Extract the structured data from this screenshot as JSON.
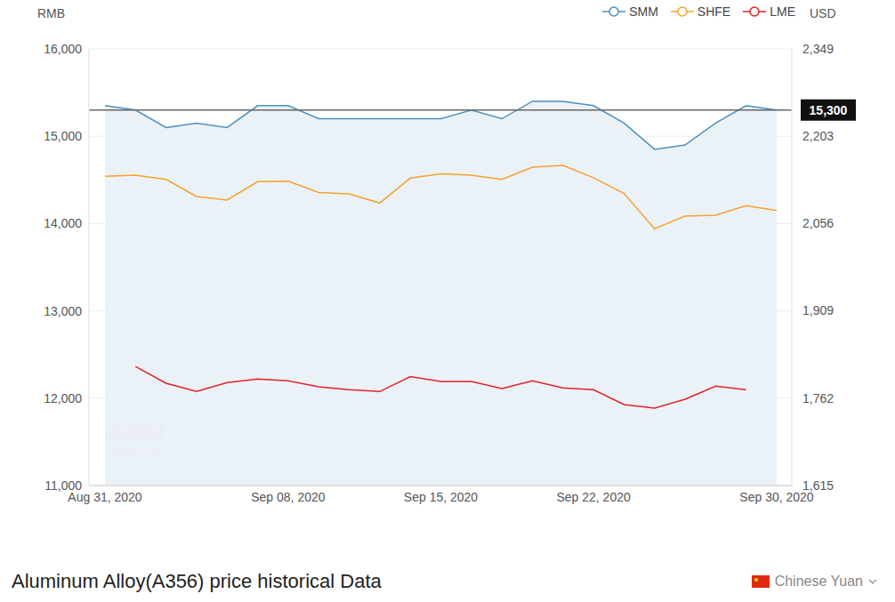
{
  "chart_data": {
    "type": "line",
    "y_label": "RMB",
    "y2_label": "USD",
    "categories": [
      "Aug 31, 2020",
      null,
      null,
      null,
      null,
      null,
      "Sep 08, 2020",
      null,
      null,
      null,
      null,
      "Sep 15, 2020",
      null,
      null,
      null,
      null,
      "Sep 22, 2020",
      null,
      null,
      null,
      null,
      null,
      "Sep 30, 2020"
    ],
    "series": [
      {
        "name": "SMM",
        "type": "area",
        "color": "#4d90bf",
        "values": [
          15350,
          15300,
          15100,
          15150,
          15100,
          15350,
          15350,
          15200,
          15200,
          15200,
          15200,
          15200,
          15300,
          15200,
          15400,
          15400,
          15350,
          15150,
          14850,
          14900,
          15150,
          15350,
          15300
        ]
      },
      {
        "name": "SHFE",
        "type": "line",
        "color": "#f5a030",
        "values": [
          14540,
          14555,
          14505,
          14310,
          14270,
          14480,
          14485,
          14355,
          14340,
          14235,
          14520,
          14570,
          14555,
          14505,
          14645,
          14665,
          14525,
          14345,
          13940,
          14085,
          14095,
          14205,
          14150
        ]
      },
      {
        "name": "LME",
        "type": "line",
        "color": "#e3202a",
        "axis": "y2",
        "values": [
          null,
          1815,
          1787,
          1773,
          1788,
          1794,
          1791,
          1781,
          1776,
          1773,
          1798,
          1790,
          1790,
          1778,
          1791,
          1779,
          1776,
          1751,
          1745,
          1760,
          1782,
          1776,
          null
        ]
      }
    ],
    "ylim": [
      11000,
      16000
    ],
    "yticks": [
      {
        "value": 11000,
        "label": "11,000"
      },
      {
        "value": 12000,
        "label": "12,000"
      },
      {
        "value": 13000,
        "label": "13,000"
      },
      {
        "value": 14000,
        "label": "14,000"
      },
      {
        "value": 15000,
        "label": "15,000"
      },
      {
        "value": 16000,
        "label": "16,000"
      }
    ],
    "y2lim": [
      1615,
      2349
    ],
    "y2ticks": [
      {
        "value": 1615,
        "label": "1,615"
      },
      {
        "value": 1762,
        "label": "1,762"
      },
      {
        "value": 1909,
        "label": "1,909"
      },
      {
        "value": 2056,
        "label": "2,056"
      },
      {
        "value": 2203,
        "label": "2,203"
      },
      {
        "value": 2349,
        "label": "2,349"
      }
    ],
    "grid": true,
    "legend": "top right",
    "annotations": [
      {
        "value": 15300,
        "label": "15,300"
      }
    ]
  },
  "watermark": [
    "SMM",
    "metal.com"
  ],
  "footer": {
    "title": "Aluminum Alloy(A356) price historical Data",
    "currency": "Chinese Yuan"
  }
}
